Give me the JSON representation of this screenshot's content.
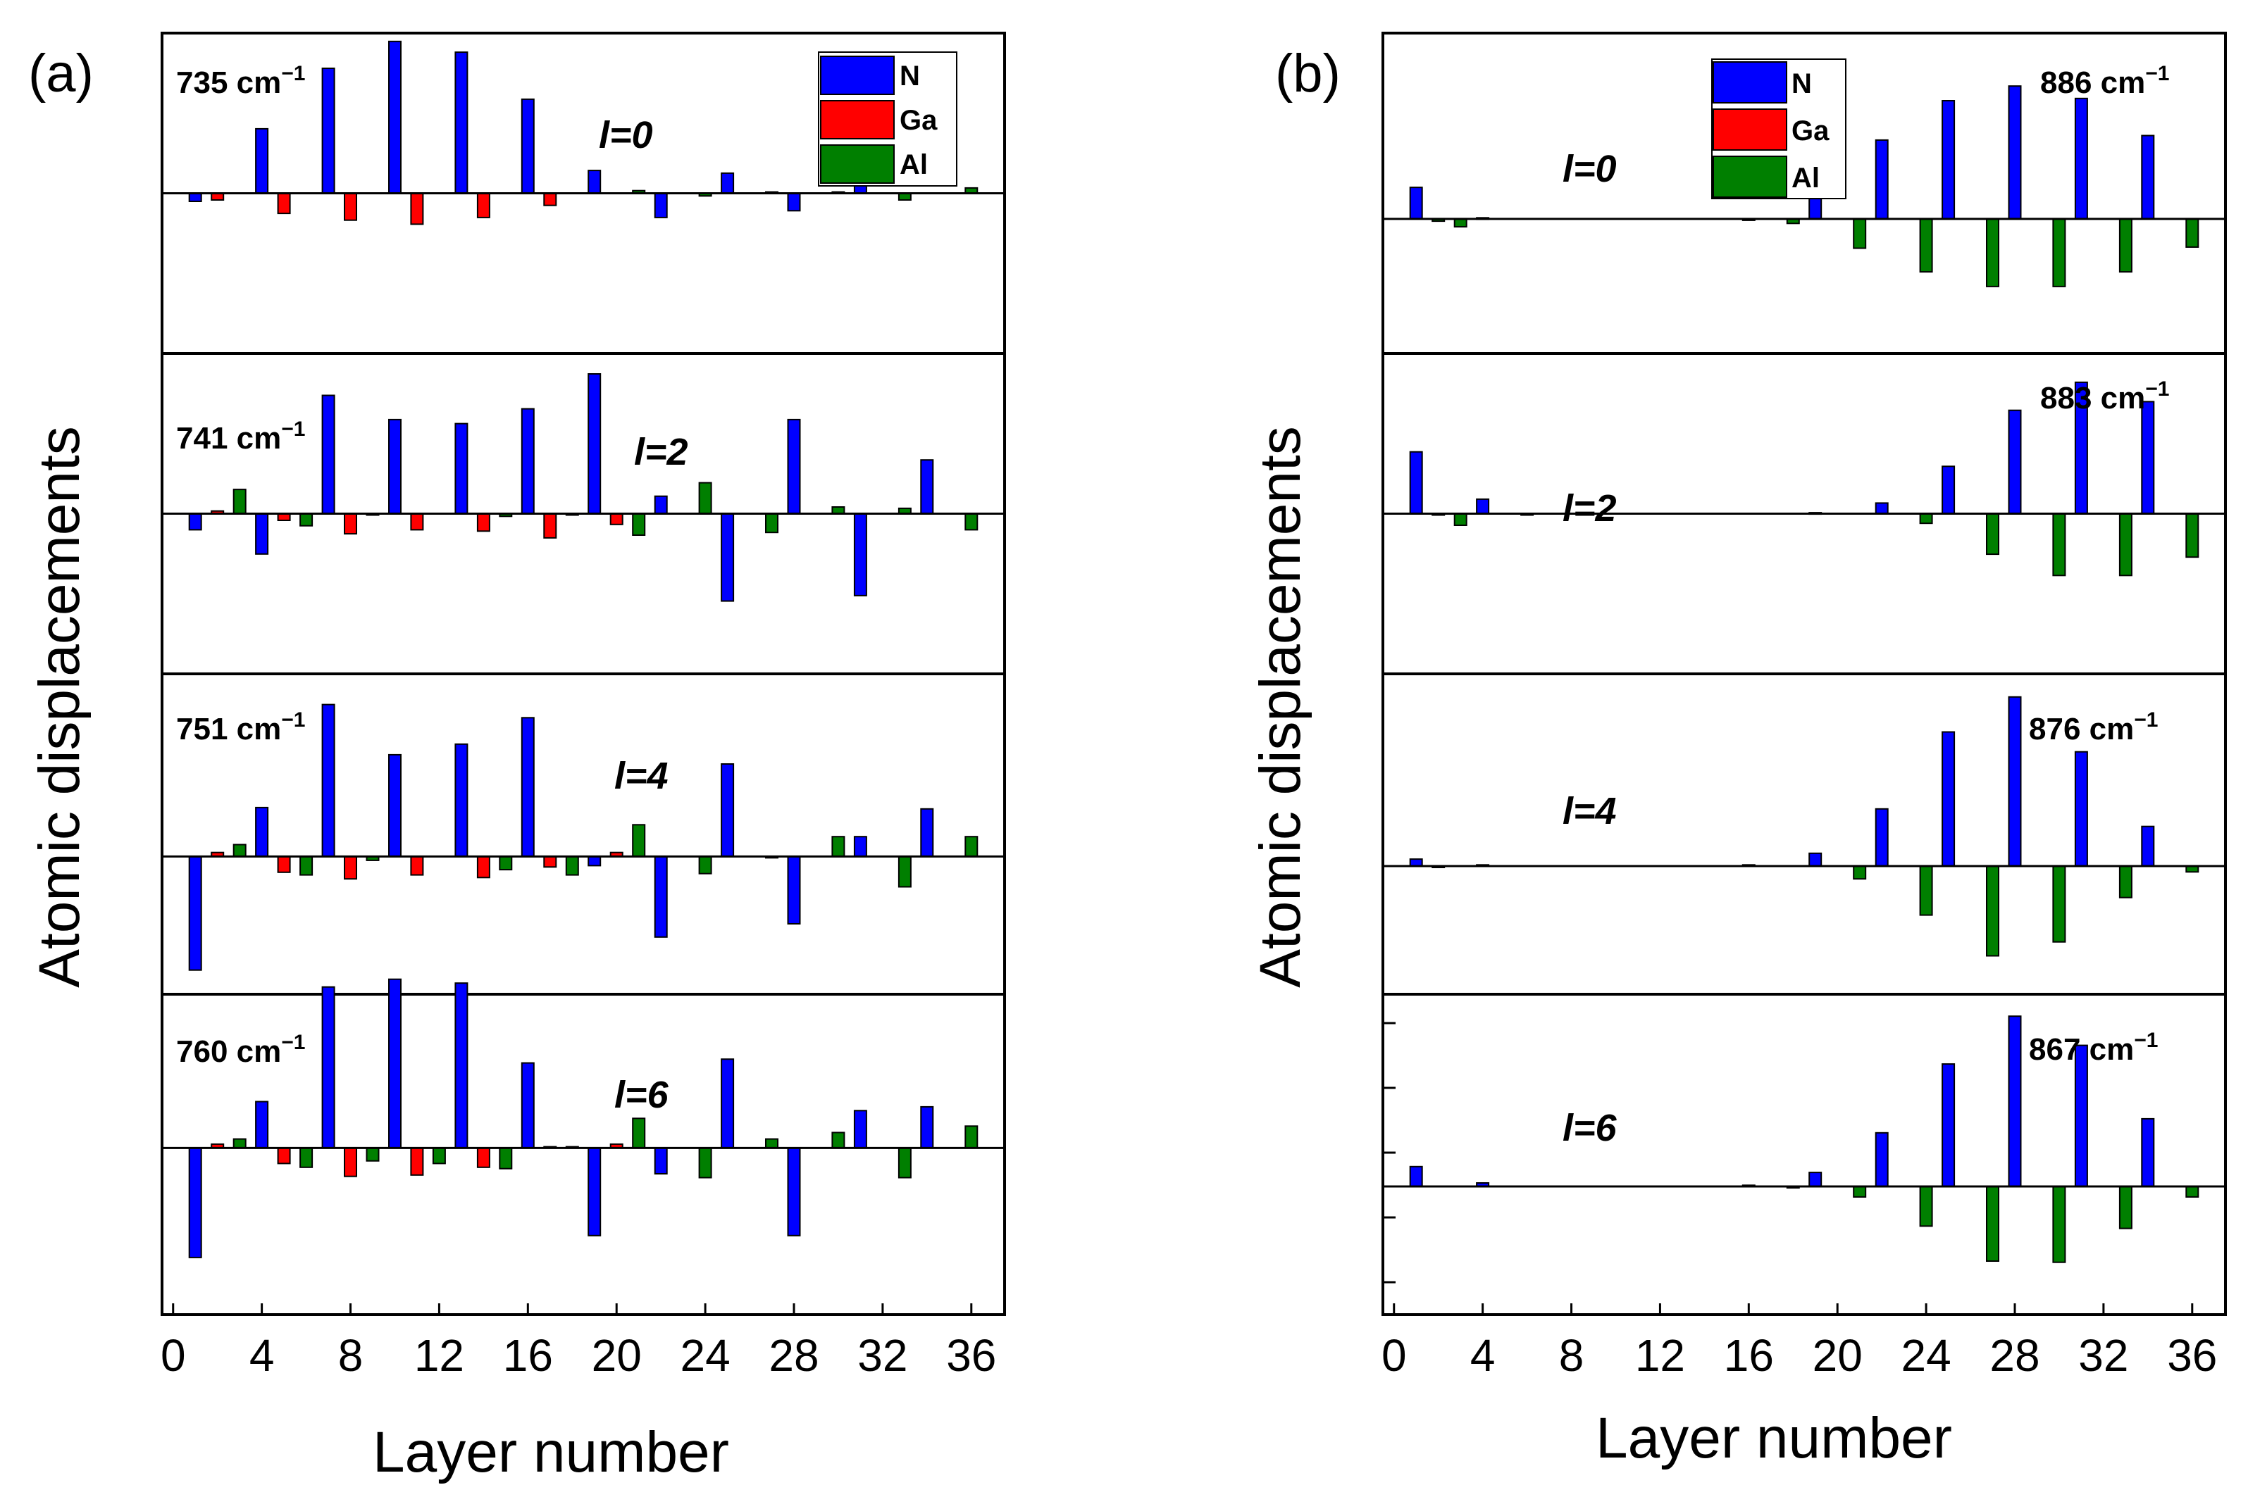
{
  "colors": {
    "N": "#0000ff",
    "Ga": "#ff0000",
    "Al": "#007f00"
  },
  "chart_data": [
    {
      "panel_label": "(a)",
      "type": "bar",
      "xlabel": "Layer number",
      "ylabel": "Atomic displacements",
      "xlim": [
        -0.5,
        37.5
      ],
      "xticks": [
        "0",
        "4",
        "8",
        "12",
        "16",
        "20",
        "24",
        "28",
        "32",
        "36"
      ],
      "legend": [
        {
          "name": "N"
        },
        {
          "name": "Ga"
        },
        {
          "name": "Al"
        }
      ],
      "subplots": [
        {
          "freq": "735 cm",
          "freq_sup": "−1",
          "l_label": "l=0",
          "ylim": [
            -1.0,
            1.15
          ],
          "bars": {
            "N": [
              [
                1,
                -0.06
              ],
              [
                4,
                0.48
              ],
              [
                7,
                0.93
              ],
              [
                10,
                1.13
              ],
              [
                13,
                1.05
              ],
              [
                16,
                0.7
              ],
              [
                19,
                0.17
              ],
              [
                22,
                -0.18
              ],
              [
                25,
                0.15
              ],
              [
                28,
                -0.13
              ],
              [
                31,
                0.06
              ]
            ],
            "Ga": [
              [
                2,
                -0.05
              ],
              [
                5,
                -0.15
              ],
              [
                8,
                -0.2
              ],
              [
                11,
                -0.23
              ],
              [
                14,
                -0.18
              ],
              [
                17,
                -0.09
              ]
            ],
            "Al": [
              [
                21,
                0.02
              ],
              [
                24,
                -0.02
              ],
              [
                27,
                0.01
              ],
              [
                30,
                0.01
              ],
              [
                33,
                -0.05
              ],
              [
                36,
                0.04
              ]
            ]
          }
        },
        {
          "freq": "741 cm",
          "freq_sup": "−1",
          "l_label": "l=2",
          "ylim": [
            -1.0,
            1.15
          ],
          "bars": {
            "N": [
              [
                1,
                -0.12
              ],
              [
                4,
                -0.3
              ],
              [
                7,
                0.88
              ],
              [
                10,
                0.7
              ],
              [
                13,
                0.67
              ],
              [
                16,
                0.78
              ],
              [
                19,
                1.04
              ],
              [
                22,
                0.13
              ],
              [
                25,
                -0.65
              ],
              [
                28,
                0.7
              ],
              [
                31,
                -0.61
              ],
              [
                34,
                0.4
              ]
            ],
            "Ga": [
              [
                2,
                0.02
              ],
              [
                5,
                -0.05
              ],
              [
                8,
                -0.15
              ],
              [
                11,
                -0.12
              ],
              [
                14,
                -0.13
              ],
              [
                17,
                -0.18
              ],
              [
                20,
                -0.08
              ]
            ],
            "Al": [
              [
                3,
                0.18
              ],
              [
                6,
                -0.09
              ],
              [
                9,
                -0.01
              ],
              [
                15,
                -0.02
              ],
              [
                18,
                -0.01
              ],
              [
                21,
                -0.16
              ],
              [
                24,
                0.23
              ],
              [
                27,
                -0.14
              ],
              [
                30,
                0.05
              ],
              [
                33,
                0.04
              ],
              [
                36,
                -0.12
              ]
            ]
          }
        },
        {
          "freq": "751 cm",
          "freq_sup": "−1",
          "l_label": "l=4",
          "ylim": [
            -1.0,
            1.15
          ],
          "bars": {
            "N": [
              [
                1,
                -0.86
              ],
              [
                4,
                0.37
              ],
              [
                7,
                1.15
              ],
              [
                10,
                0.77
              ],
              [
                13,
                0.85
              ],
              [
                16,
                1.05
              ],
              [
                19,
                -0.07
              ],
              [
                22,
                -0.61
              ],
              [
                25,
                0.7
              ],
              [
                28,
                -0.51
              ],
              [
                31,
                0.15
              ],
              [
                34,
                0.36
              ]
            ],
            "Ga": [
              [
                2,
                0.03
              ],
              [
                5,
                -0.12
              ],
              [
                8,
                -0.17
              ],
              [
                11,
                -0.14
              ],
              [
                14,
                -0.16
              ],
              [
                17,
                -0.08
              ],
              [
                20,
                0.03
              ]
            ],
            "Al": [
              [
                3,
                0.09
              ],
              [
                6,
                -0.14
              ],
              [
                9,
                -0.03
              ],
              [
                15,
                -0.1
              ],
              [
                18,
                -0.14
              ],
              [
                21,
                0.24
              ],
              [
                24,
                -0.13
              ],
              [
                27,
                -0.01
              ],
              [
                30,
                0.15
              ],
              [
                33,
                -0.23
              ],
              [
                36,
                0.15
              ]
            ]
          }
        },
        {
          "freq": "760 cm",
          "freq_sup": "−1",
          "l_label": "l=6",
          "ylim": [
            -1.0,
            1.15
          ],
          "bars": {
            "N": [
              [
                1,
                -0.85
              ],
              [
                4,
                0.36
              ],
              [
                7,
                1.25
              ],
              [
                10,
                1.31
              ],
              [
                13,
                1.28
              ],
              [
                16,
                0.66
              ],
              [
                19,
                -0.68
              ],
              [
                22,
                -0.2
              ],
              [
                25,
                0.69
              ],
              [
                28,
                -0.68
              ],
              [
                31,
                0.29
              ],
              [
                34,
                0.32
              ]
            ],
            "Ga": [
              [
                2,
                0.03
              ],
              [
                5,
                -0.12
              ],
              [
                8,
                -0.22
              ],
              [
                11,
                -0.21
              ],
              [
                14,
                -0.15
              ],
              [
                17,
                0.01
              ],
              [
                20,
                0.03
              ]
            ],
            "Al": [
              [
                3,
                0.07
              ],
              [
                6,
                -0.15
              ],
              [
                9,
                -0.1
              ],
              [
                12,
                -0.12
              ],
              [
                15,
                -0.16
              ],
              [
                18,
                0.01
              ],
              [
                21,
                0.23
              ],
              [
                24,
                -0.23
              ],
              [
                27,
                0.07
              ],
              [
                30,
                0.12
              ],
              [
                33,
                -0.23
              ],
              [
                36,
                0.17
              ]
            ]
          }
        }
      ]
    },
    {
      "panel_label": "(b)",
      "type": "bar",
      "xlabel": "Layer number",
      "ylabel": "Atomic displacements",
      "xlim": [
        -0.5,
        37.5
      ],
      "xticks": [
        "0",
        "4",
        "8",
        "12",
        "16",
        "20",
        "24",
        "28",
        "32",
        "36"
      ],
      "legend": [
        {
          "name": "N"
        },
        {
          "name": "Ga"
        },
        {
          "name": "Al"
        }
      ],
      "subplots": [
        {
          "freq": "886 cm",
          "freq_sup": "−1",
          "l_label": "l=0",
          "ylim": [
            -0.62,
            1.6
          ],
          "bars": {
            "N": [
              [
                1,
                0.28
              ],
              [
                4,
                0.01
              ],
              [
                19,
                0.18
              ],
              [
                22,
                0.7
              ],
              [
                25,
                1.05
              ],
              [
                28,
                1.18
              ],
              [
                31,
                1.07
              ],
              [
                34,
                0.74
              ]
            ],
            "Ga": [],
            "Al": [
              [
                2,
                -0.02
              ],
              [
                3,
                -0.07
              ],
              [
                16,
                -0.01
              ],
              [
                18,
                -0.04
              ],
              [
                21,
                -0.26
              ],
              [
                24,
                -0.47
              ],
              [
                27,
                -0.6
              ],
              [
                30,
                -0.6
              ],
              [
                33,
                -0.47
              ],
              [
                36,
                -0.25
              ]
            ]
          }
        },
        {
          "freq": "883 cm",
          "freq_sup": "−1",
          "l_label": "l=2",
          "ylim": [
            -0.62,
            1.6
          ],
          "bars": {
            "N": [
              [
                1,
                0.64
              ],
              [
                4,
                0.15
              ],
              [
                19,
                0.01
              ],
              [
                22,
                0.11
              ],
              [
                25,
                0.49
              ],
              [
                28,
                1.07
              ],
              [
                31,
                1.36
              ],
              [
                34,
                1.16
              ]
            ],
            "Ga": [],
            "Al": [
              [
                2,
                -0.01
              ],
              [
                3,
                -0.12
              ],
              [
                6,
                -0.01
              ],
              [
                24,
                -0.1
              ],
              [
                27,
                -0.42
              ],
              [
                30,
                -0.64
              ],
              [
                33,
                -0.64
              ],
              [
                36,
                -0.45
              ]
            ]
          }
        },
        {
          "freq": "876 cm",
          "freq_sup": "−1",
          "l_label": "l=4",
          "ylim": [
            -0.62,
            1.6
          ],
          "bars": {
            "N": [
              [
                1,
                0.06
              ],
              [
                4,
                0.01
              ],
              [
                19,
                0.11
              ],
              [
                22,
                0.49
              ],
              [
                25,
                1.15
              ],
              [
                28,
                1.45
              ],
              [
                31,
                0.98
              ],
              [
                34,
                0.34
              ]
            ],
            "Ga": [],
            "Al": [
              [
                2,
                -0.01
              ],
              [
                16,
                0.01
              ],
              [
                21,
                -0.11
              ],
              [
                24,
                -0.42
              ],
              [
                27,
                -0.77
              ],
              [
                30,
                -0.65
              ],
              [
                33,
                -0.27
              ],
              [
                36,
                -0.05
              ]
            ]
          }
        },
        {
          "freq": "867 cm",
          "freq_sup": "−1",
          "l_label": "l=6",
          "ylim": [
            -0.62,
            1.6
          ],
          "bars": {
            "N": [
              [
                1,
                0.17
              ],
              [
                4,
                0.03
              ],
              [
                19,
                0.12
              ],
              [
                22,
                0.46
              ],
              [
                25,
                1.05
              ],
              [
                28,
                1.46
              ],
              [
                31,
                1.21
              ],
              [
                34,
                0.58
              ]
            ],
            "Ga": [],
            "Al": [
              [
                16,
                0.01
              ],
              [
                18,
                -0.01
              ],
              [
                21,
                -0.09
              ],
              [
                24,
                -0.34
              ],
              [
                27,
                -0.64
              ],
              [
                30,
                -0.65
              ],
              [
                33,
                -0.36
              ],
              [
                36,
                -0.09
              ]
            ]
          }
        }
      ]
    }
  ]
}
